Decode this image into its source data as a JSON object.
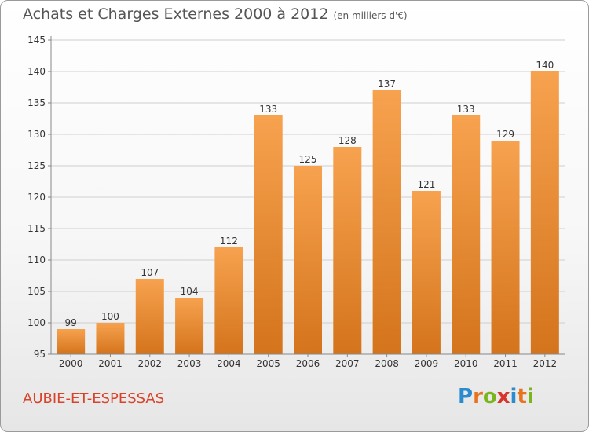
{
  "title": {
    "main": "Achats et Charges Externes 2000 à 2012",
    "unit": "(en milliers d'€)"
  },
  "commune": "AUBIE-ET-ESPESSAS",
  "logo": {
    "letters": [
      "P",
      "r",
      "o",
      "x",
      "i",
      "t",
      "i"
    ],
    "colors": [
      "#2a8ccf",
      "#e8731f",
      "#7ab51d",
      "#d9342b",
      "#2a8ccf",
      "#e8731f",
      "#7ab51d"
    ]
  },
  "colors": {
    "bar_top": "#f7a24f",
    "bar_bottom": "#d4741c",
    "grid": "#cfcfcf",
    "axis": "#888888",
    "text": "#333333"
  },
  "chart_data": {
    "type": "bar",
    "categories": [
      "2000",
      "2001",
      "2002",
      "2003",
      "2004",
      "2005",
      "2006",
      "2007",
      "2008",
      "2009",
      "2010",
      "2011",
      "2012"
    ],
    "values": [
      99,
      100,
      107,
      104,
      112,
      133,
      125,
      128,
      137,
      121,
      133,
      129,
      140
    ],
    "title": "Achats et Charges Externes 2000 à 2012",
    "xlabel": "",
    "ylabel": "",
    "ylim": [
      95,
      145
    ],
    "yticks": [
      95,
      100,
      105,
      110,
      115,
      120,
      125,
      130,
      135,
      140,
      145
    ],
    "grid": true,
    "data_labels": true
  }
}
